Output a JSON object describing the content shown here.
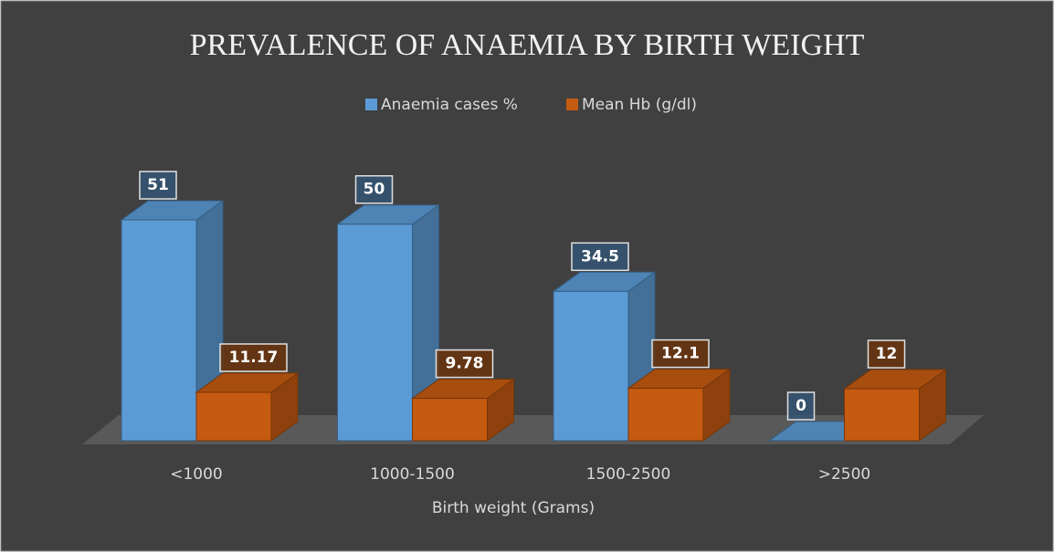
{
  "chart_data": {
    "type": "bar3d",
    "title": "PREVALENCE OF ANAEMIA BY BIRTH WEIGHT",
    "x_label": "Birth weight (Grams)",
    "categories": [
      "<1000",
      "1000-1500",
      "1500-2500",
      ">2500"
    ],
    "series": [
      {
        "name": "Anaemia cases %",
        "color": "#5b9bd5",
        "values": [
          51,
          50,
          34.5,
          0
        ]
      },
      {
        "name": "Mean Hb (g/dl)",
        "color": "#c55a11",
        "values": [
          11.17,
          9.78,
          12.1,
          12
        ]
      }
    ],
    "legend": "top"
  }
}
